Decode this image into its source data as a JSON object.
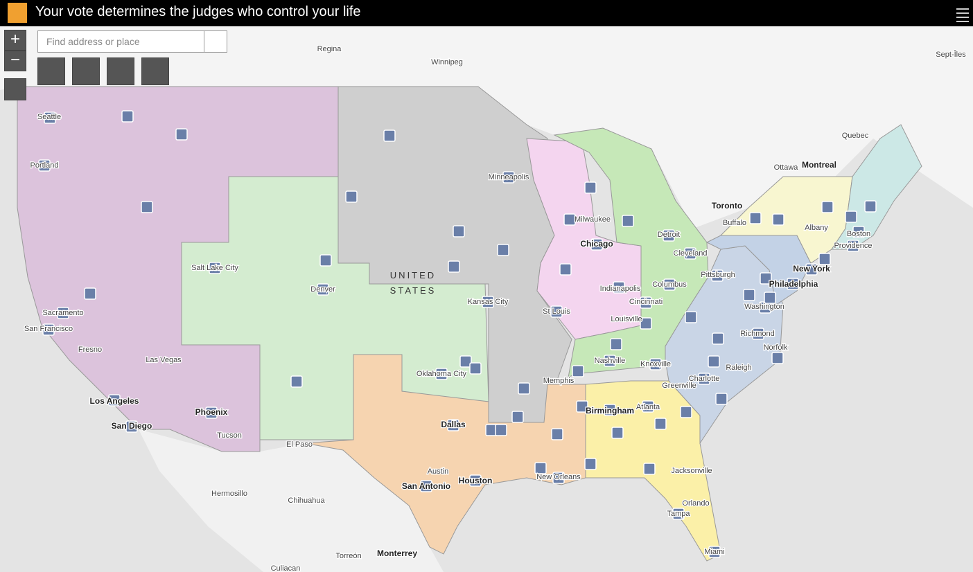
{
  "header": {
    "title": "Your vote determines the judges who control your life"
  },
  "search": {
    "placeholder": "Find address or place"
  },
  "map": {
    "labels": [
      "Regina",
      "Winnipeg",
      "Sept-Îles",
      "Quebec",
      "Montreal",
      "Ottawa",
      "Toronto",
      "Buffalo",
      "Albany",
      "Boston",
      "Providence",
      "New York",
      "Philadelphia",
      "Washington",
      "Richmond",
      "Norfolk",
      "Raleigh",
      "Charlotte",
      "Greenville",
      "Pittsburgh",
      "Cleveland",
      "Detroit",
      "Columbus",
      "Cincinnati",
      "Louisville",
      "Indianapolis",
      "Chicago",
      "Milwaukee",
      "Minneapolis",
      "St Louis",
      "Kansas City",
      "UNITED",
      "STATES",
      "Nashville",
      "Knoxville",
      "Memphis",
      "Birmingham",
      "Atlanta",
      "Jacksonville",
      "Orlando",
      "Tampa",
      "Miami",
      "New Orleans",
      "Houston",
      "San Antonio",
      "Austin",
      "Dallas",
      "Oklahoma City",
      "Denver",
      "Salt Lake City",
      "Seattle",
      "Portland",
      "Sacramento",
      "San Francisco",
      "Fresno",
      "Las Vegas",
      "Los Angeles",
      "San Diego",
      "Phoenix",
      "Tucson",
      "El Paso",
      "Hermosillo",
      "Chihuahua",
      "Monterrey",
      "Torreón",
      "Culiacan"
    ]
  }
}
